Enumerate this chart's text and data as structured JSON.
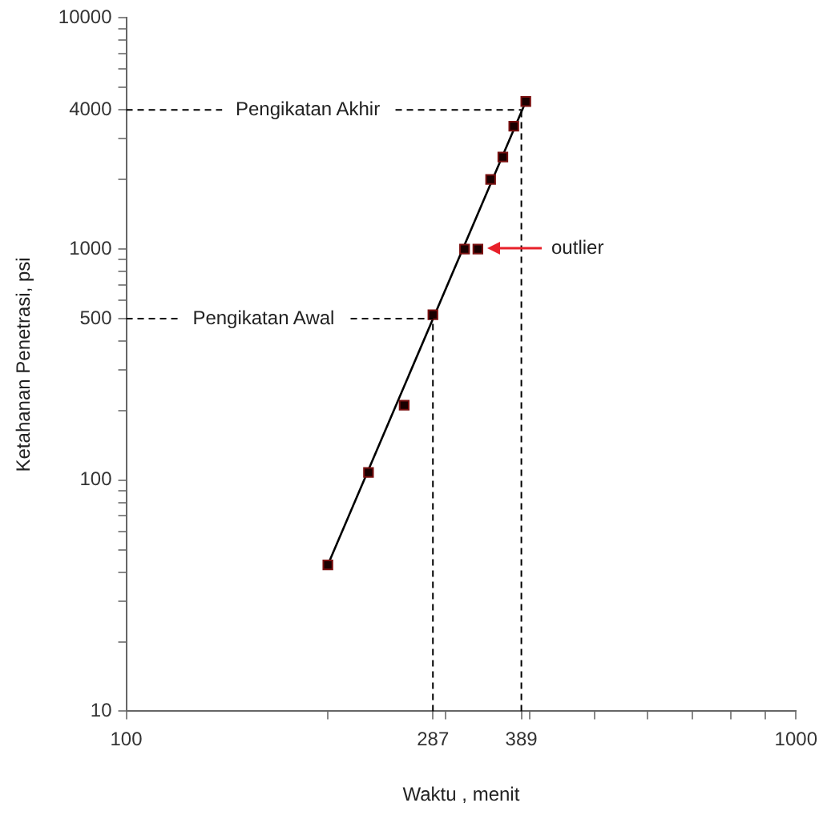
{
  "chart_data": {
    "type": "scatter",
    "xlabel": "Waktu , menit",
    "ylabel": "Ketahanan Penetrasi, psi",
    "log": "xy",
    "marker": "square",
    "legend": false,
    "xlim": [
      100,
      1000
    ],
    "xticks": [
      100,
      {
        "value": 200,
        "label": null
      },
      287,
      {
        "value": 300,
        "label": null
      },
      389,
      {
        "value": 400,
        "label": null
      },
      {
        "value": 500,
        "label": null
      },
      {
        "value": 600,
        "label": null
      },
      {
        "value": 700,
        "label": null
      },
      {
        "value": 800,
        "label": null
      },
      {
        "value": 900,
        "label": null
      },
      1000
    ],
    "ylim": [
      10,
      10000
    ],
    "yticks": [
      10,
      {
        "value": 20,
        "label": null
      },
      {
        "value": 30,
        "label": null
      },
      {
        "value": 40,
        "label": null
      },
      {
        "value": 50,
        "label": null
      },
      {
        "value": 60,
        "label": null
      },
      {
        "value": 70,
        "label": null
      },
      {
        "value": 80,
        "label": null
      },
      {
        "value": 90,
        "label": null
      },
      100,
      {
        "value": 200,
        "label": null
      },
      {
        "value": 300,
        "label": null
      },
      {
        "value": 400,
        "label": null
      },
      500,
      {
        "value": 600,
        "label": null
      },
      {
        "value": 700,
        "label": null
      },
      {
        "value": 800,
        "label": null
      },
      {
        "value": 900,
        "label": null
      },
      1000,
      {
        "value": 2000,
        "label": null
      },
      {
        "value": 3000,
        "label": null
      },
      4000,
      {
        "value": 5000,
        "label": null
      },
      {
        "value": 6000,
        "label": null
      },
      {
        "value": 7000,
        "label": null
      },
      {
        "value": 8000,
        "label": null
      },
      {
        "value": 9000,
        "label": null
      },
      10000
    ],
    "series": [
      {
        "color": "#1a0000",
        "x": [
          200,
          230,
          260,
          287,
          320,
          335,
          350,
          365,
          379,
          395
        ],
        "values": [
          43,
          108,
          211,
          520,
          1000,
          1000,
          2000,
          2500,
          3400,
          4350
        ]
      },
      {
        "type": "line",
        "color": "#000000",
        "marker": "none",
        "x": [
          200,
          395
        ],
        "values": [
          43,
          4350
        ]
      }
    ],
    "ref_lines": [
      {
        "axis": "y",
        "value": 500,
        "label": "Pengikatan Awal",
        "line_style": "dashed",
        "color": "#000000"
      },
      {
        "axis": "y",
        "value": 4000,
        "label": "Pengikatan Akhir",
        "line_style": "dashed",
        "color": "#000000"
      },
      {
        "axis": "x",
        "value": 287,
        "line_style": "dashed",
        "color": "#000000"
      },
      {
        "axis": "x",
        "value": 389,
        "line_style": "dashed",
        "color": "#000000"
      }
    ],
    "annotations": [
      "outlier"
    ]
  }
}
